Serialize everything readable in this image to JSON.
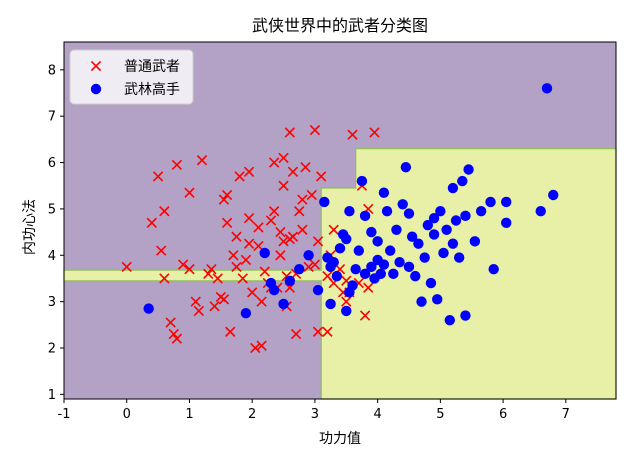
{
  "chart_data": {
    "type": "scatter",
    "title": "武侠世界中的武者分类图",
    "xlabel": "功力值",
    "ylabel": "内功心法",
    "xlim": [
      -1,
      7.8
    ],
    "ylim": [
      0.9,
      8.6
    ],
    "xticks": [
      -1,
      0,
      1,
      2,
      3,
      4,
      5,
      6,
      7
    ],
    "yticks": [
      1,
      2,
      3,
      4,
      5,
      6,
      7,
      8
    ],
    "grid": false,
    "legend_position": "top-left",
    "decision_regions": {
      "colors": {
        "普通武者": "#b3a2c6",
        "武林高手": "#e7f0a6"
      },
      "boundary_color": "#8fbf58",
      "region_high": [
        [
          -1,
          3.45
        ],
        [
          3.1,
          3.45
        ],
        [
          3.1,
          0.9
        ],
        [
          7.8,
          0.9
        ],
        [
          7.8,
          6.3
        ],
        [
          3.65,
          6.3
        ],
        [
          3.65,
          5.45
        ],
        [
          3.1,
          5.45
        ],
        [
          3.1,
          3.68
        ],
        [
          -1,
          3.68
        ]
      ]
    },
    "series": [
      {
        "name": "普通武者",
        "marker": "x",
        "color": "#ff0000",
        "points": [
          [
            0.0,
            3.75
          ],
          [
            0.4,
            4.7
          ],
          [
            0.5,
            5.7
          ],
          [
            0.55,
            4.1
          ],
          [
            0.6,
            4.95
          ],
          [
            0.6,
            3.5
          ],
          [
            0.7,
            2.55
          ],
          [
            0.75,
            2.3
          ],
          [
            0.8,
            2.2
          ],
          [
            0.8,
            5.95
          ],
          [
            0.9,
            3.8
          ],
          [
            1.0,
            3.7
          ],
          [
            1.0,
            5.35
          ],
          [
            1.1,
            3.0
          ],
          [
            1.15,
            2.8
          ],
          [
            1.2,
            6.05
          ],
          [
            1.35,
            3.7
          ],
          [
            1.4,
            2.9
          ],
          [
            1.45,
            3.5
          ],
          [
            1.5,
            3.1
          ],
          [
            1.55,
            3.05
          ],
          [
            1.6,
            4.7
          ],
          [
            1.55,
            5.2
          ],
          [
            1.6,
            5.3
          ],
          [
            1.65,
            2.35
          ],
          [
            1.7,
            4.0
          ],
          [
            1.75,
            3.75
          ],
          [
            1.75,
            4.4
          ],
          [
            1.8,
            5.7
          ],
          [
            1.85,
            3.5
          ],
          [
            1.9,
            3.9
          ],
          [
            1.95,
            5.8
          ],
          [
            1.95,
            4.8
          ],
          [
            1.95,
            4.25
          ],
          [
            2.0,
            3.2
          ],
          [
            2.05,
            2.0
          ],
          [
            2.1,
            4.6
          ],
          [
            2.1,
            4.2
          ],
          [
            2.15,
            3.0
          ],
          [
            2.15,
            2.05
          ],
          [
            2.2,
            3.65
          ],
          [
            2.25,
            3.4
          ],
          [
            2.3,
            4.75
          ],
          [
            2.35,
            4.95
          ],
          [
            2.35,
            6.0
          ],
          [
            2.4,
            3.3
          ],
          [
            2.45,
            4.0
          ],
          [
            2.45,
            4.5
          ],
          [
            2.5,
            4.3
          ],
          [
            2.5,
            5.5
          ],
          [
            2.5,
            6.1
          ],
          [
            2.55,
            2.9
          ],
          [
            2.55,
            3.55
          ],
          [
            2.6,
            4.35
          ],
          [
            2.6,
            3.3
          ],
          [
            2.6,
            6.65
          ],
          [
            2.65,
            4.4
          ],
          [
            2.65,
            5.8
          ],
          [
            2.7,
            3.6
          ],
          [
            2.7,
            2.3
          ],
          [
            2.75,
            4.95
          ],
          [
            2.8,
            4.55
          ],
          [
            2.8,
            5.2
          ],
          [
            2.85,
            5.9
          ],
          [
            2.9,
            3.75
          ],
          [
            2.95,
            5.3
          ],
          [
            3.0,
            3.8
          ],
          [
            3.0,
            6.7
          ],
          [
            3.05,
            4.3
          ],
          [
            3.05,
            2.35
          ],
          [
            3.1,
            5.7
          ],
          [
            3.2,
            2.35
          ],
          [
            3.25,
            4.0
          ],
          [
            3.3,
            4.55
          ],
          [
            3.4,
            3.7
          ],
          [
            3.45,
            3.2
          ],
          [
            3.5,
            3.45
          ],
          [
            3.5,
            3.0
          ],
          [
            3.55,
            3.2
          ],
          [
            3.6,
            6.6
          ],
          [
            3.7,
            3.4
          ],
          [
            3.75,
            5.5
          ],
          [
            3.8,
            2.7
          ],
          [
            3.85,
            3.3
          ],
          [
            3.85,
            5.0
          ],
          [
            3.95,
            6.65
          ],
          [
            3.2,
            3.55
          ],
          [
            3.3,
            3.4
          ],
          [
            2.3,
            3.3
          ],
          [
            1.3,
            3.6
          ]
        ]
      },
      {
        "name": "武林高手",
        "marker": "o",
        "color": "#0000ff",
        "points": [
          [
            0.35,
            2.85
          ],
          [
            1.9,
            2.75
          ],
          [
            2.2,
            4.05
          ],
          [
            2.3,
            3.4
          ],
          [
            2.35,
            3.25
          ],
          [
            2.5,
            2.95
          ],
          [
            2.6,
            3.45
          ],
          [
            2.75,
            3.7
          ],
          [
            2.9,
            4.0
          ],
          [
            3.05,
            3.25
          ],
          [
            3.15,
            5.15
          ],
          [
            3.2,
            3.95
          ],
          [
            3.25,
            2.95
          ],
          [
            3.25,
            3.75
          ],
          [
            3.3,
            3.85
          ],
          [
            3.35,
            3.55
          ],
          [
            3.4,
            4.15
          ],
          [
            3.45,
            4.45
          ],
          [
            3.5,
            4.35
          ],
          [
            3.55,
            4.95
          ],
          [
            3.55,
            3.2
          ],
          [
            3.6,
            3.35
          ],
          [
            3.65,
            3.7
          ],
          [
            3.7,
            4.1
          ],
          [
            3.75,
            5.6
          ],
          [
            3.8,
            4.85
          ],
          [
            3.8,
            3.6
          ],
          [
            3.9,
            4.5
          ],
          [
            3.9,
            3.75
          ],
          [
            3.95,
            3.5
          ],
          [
            4.0,
            3.9
          ],
          [
            4.0,
            4.3
          ],
          [
            4.05,
            3.6
          ],
          [
            4.1,
            3.8
          ],
          [
            4.1,
            5.35
          ],
          [
            4.15,
            4.95
          ],
          [
            4.2,
            4.1
          ],
          [
            4.3,
            4.55
          ],
          [
            4.35,
            3.85
          ],
          [
            4.4,
            5.1
          ],
          [
            4.45,
            5.9
          ],
          [
            4.5,
            4.9
          ],
          [
            4.5,
            3.75
          ],
          [
            4.55,
            4.4
          ],
          [
            4.6,
            3.55
          ],
          [
            4.65,
            4.25
          ],
          [
            4.7,
            3.0
          ],
          [
            4.75,
            3.95
          ],
          [
            4.8,
            4.65
          ],
          [
            4.85,
            3.4
          ],
          [
            4.9,
            4.8
          ],
          [
            4.95,
            3.05
          ],
          [
            5.0,
            4.95
          ],
          [
            5.05,
            4.05
          ],
          [
            5.1,
            4.55
          ],
          [
            5.15,
            2.6
          ],
          [
            5.2,
            4.25
          ],
          [
            5.2,
            5.45
          ],
          [
            5.25,
            4.75
          ],
          [
            5.3,
            3.95
          ],
          [
            5.35,
            5.6
          ],
          [
            5.4,
            4.85
          ],
          [
            5.4,
            2.7
          ],
          [
            5.45,
            5.85
          ],
          [
            5.55,
            4.3
          ],
          [
            5.65,
            4.95
          ],
          [
            5.8,
            5.15
          ],
          [
            5.85,
            3.7
          ],
          [
            6.05,
            4.7
          ],
          [
            6.05,
            5.15
          ],
          [
            6.6,
            4.95
          ],
          [
            6.7,
            7.6
          ],
          [
            6.8,
            5.3
          ],
          [
            3.5,
            2.8
          ],
          [
            4.25,
            3.6
          ],
          [
            4.9,
            4.45
          ]
        ]
      }
    ]
  }
}
